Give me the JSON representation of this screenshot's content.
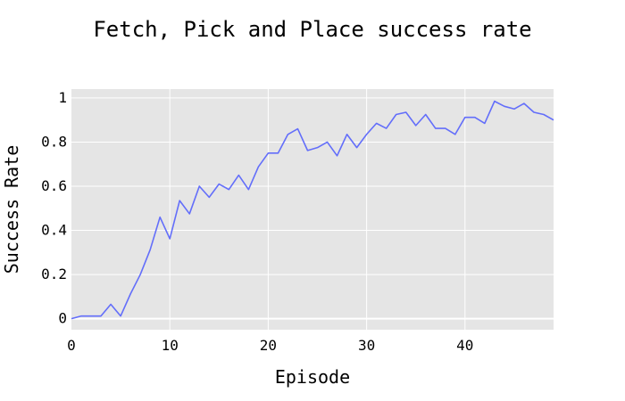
{
  "chart_data": {
    "type": "line",
    "title": "Fetch, Pick and Place success rate",
    "xlabel": "Episode",
    "ylabel": "Success Rate",
    "xlim": [
      0,
      49
    ],
    "ylim": [
      -0.05,
      1.04
    ],
    "xticks": [
      0,
      10,
      20,
      30,
      40
    ],
    "yticks": [
      0,
      0.2,
      0.4,
      0.6,
      0.8,
      1
    ],
    "ytick_labels": [
      "0",
      "0.2",
      "0.4",
      "0.6",
      "0.8",
      "1"
    ],
    "grid": true,
    "legend": "none",
    "colors": {
      "plot_bg": "#e5e5e5",
      "grid": "#ffffff",
      "line": "#636efa"
    },
    "series": [
      {
        "x": [
          0,
          1,
          2,
          3,
          4,
          5,
          6,
          7,
          8,
          9,
          10,
          11,
          12,
          13,
          14,
          15,
          16,
          17,
          18,
          19,
          20,
          21,
          22,
          23,
          24,
          25,
          26,
          27,
          28,
          29,
          30,
          31,
          32,
          33,
          34,
          35,
          36,
          37,
          38,
          39,
          40,
          41,
          42,
          43,
          44,
          45,
          46,
          47,
          48,
          49
        ],
        "values": [
          0.0,
          0.012,
          0.012,
          0.012,
          0.065,
          0.012,
          0.112,
          0.2,
          0.312,
          0.46,
          0.362,
          0.535,
          0.475,
          0.6,
          0.55,
          0.61,
          0.585,
          0.65,
          0.585,
          0.688,
          0.75,
          0.75,
          0.835,
          0.86,
          0.762,
          0.775,
          0.8,
          0.738,
          0.835,
          0.775,
          0.835,
          0.885,
          0.862,
          0.925,
          0.935,
          0.875,
          0.925,
          0.862,
          0.862,
          0.835,
          0.912,
          0.912,
          0.885,
          0.985,
          0.962,
          0.95,
          0.975,
          0.935,
          0.925,
          0.9
        ]
      }
    ]
  }
}
